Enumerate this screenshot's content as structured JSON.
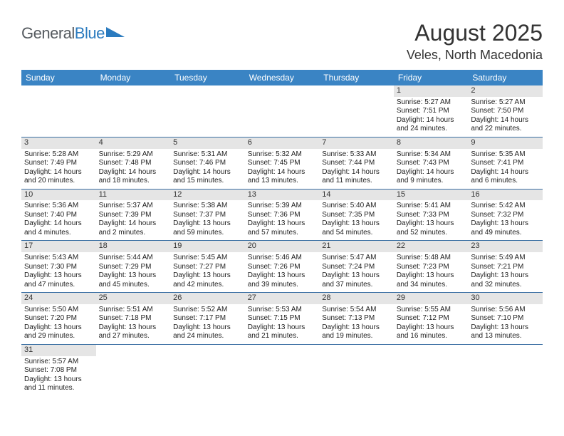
{
  "logo": {
    "part1": "General",
    "part2": "Blue"
  },
  "title": "August 2025",
  "location": "Veles, North Macedonia",
  "weekdays": [
    "Sunday",
    "Monday",
    "Tuesday",
    "Wednesday",
    "Thursday",
    "Friday",
    "Saturday"
  ],
  "colors": {
    "header_bg": "#3a84c4",
    "header_text": "#ffffff",
    "daynum_bg": "#e5e5e5",
    "cell_border": "#3a6fa3",
    "logo_gray": "#555a5f",
    "logo_blue": "#2b7bbf"
  },
  "weeks": [
    [
      null,
      null,
      null,
      null,
      null,
      {
        "n": "1",
        "rise": "Sunrise: 5:27 AM",
        "set": "Sunset: 7:51 PM",
        "dl": "Daylight: 14 hours and 24 minutes."
      },
      {
        "n": "2",
        "rise": "Sunrise: 5:27 AM",
        "set": "Sunset: 7:50 PM",
        "dl": "Daylight: 14 hours and 22 minutes."
      }
    ],
    [
      {
        "n": "3",
        "rise": "Sunrise: 5:28 AM",
        "set": "Sunset: 7:49 PM",
        "dl": "Daylight: 14 hours and 20 minutes."
      },
      {
        "n": "4",
        "rise": "Sunrise: 5:29 AM",
        "set": "Sunset: 7:48 PM",
        "dl": "Daylight: 14 hours and 18 minutes."
      },
      {
        "n": "5",
        "rise": "Sunrise: 5:31 AM",
        "set": "Sunset: 7:46 PM",
        "dl": "Daylight: 14 hours and 15 minutes."
      },
      {
        "n": "6",
        "rise": "Sunrise: 5:32 AM",
        "set": "Sunset: 7:45 PM",
        "dl": "Daylight: 14 hours and 13 minutes."
      },
      {
        "n": "7",
        "rise": "Sunrise: 5:33 AM",
        "set": "Sunset: 7:44 PM",
        "dl": "Daylight: 14 hours and 11 minutes."
      },
      {
        "n": "8",
        "rise": "Sunrise: 5:34 AM",
        "set": "Sunset: 7:43 PM",
        "dl": "Daylight: 14 hours and 9 minutes."
      },
      {
        "n": "9",
        "rise": "Sunrise: 5:35 AM",
        "set": "Sunset: 7:41 PM",
        "dl": "Daylight: 14 hours and 6 minutes."
      }
    ],
    [
      {
        "n": "10",
        "rise": "Sunrise: 5:36 AM",
        "set": "Sunset: 7:40 PM",
        "dl": "Daylight: 14 hours and 4 minutes."
      },
      {
        "n": "11",
        "rise": "Sunrise: 5:37 AM",
        "set": "Sunset: 7:39 PM",
        "dl": "Daylight: 14 hours and 2 minutes."
      },
      {
        "n": "12",
        "rise": "Sunrise: 5:38 AM",
        "set": "Sunset: 7:37 PM",
        "dl": "Daylight: 13 hours and 59 minutes."
      },
      {
        "n": "13",
        "rise": "Sunrise: 5:39 AM",
        "set": "Sunset: 7:36 PM",
        "dl": "Daylight: 13 hours and 57 minutes."
      },
      {
        "n": "14",
        "rise": "Sunrise: 5:40 AM",
        "set": "Sunset: 7:35 PM",
        "dl": "Daylight: 13 hours and 54 minutes."
      },
      {
        "n": "15",
        "rise": "Sunrise: 5:41 AM",
        "set": "Sunset: 7:33 PM",
        "dl": "Daylight: 13 hours and 52 minutes."
      },
      {
        "n": "16",
        "rise": "Sunrise: 5:42 AM",
        "set": "Sunset: 7:32 PM",
        "dl": "Daylight: 13 hours and 49 minutes."
      }
    ],
    [
      {
        "n": "17",
        "rise": "Sunrise: 5:43 AM",
        "set": "Sunset: 7:30 PM",
        "dl": "Daylight: 13 hours and 47 minutes."
      },
      {
        "n": "18",
        "rise": "Sunrise: 5:44 AM",
        "set": "Sunset: 7:29 PM",
        "dl": "Daylight: 13 hours and 45 minutes."
      },
      {
        "n": "19",
        "rise": "Sunrise: 5:45 AM",
        "set": "Sunset: 7:27 PM",
        "dl": "Daylight: 13 hours and 42 minutes."
      },
      {
        "n": "20",
        "rise": "Sunrise: 5:46 AM",
        "set": "Sunset: 7:26 PM",
        "dl": "Daylight: 13 hours and 39 minutes."
      },
      {
        "n": "21",
        "rise": "Sunrise: 5:47 AM",
        "set": "Sunset: 7:24 PM",
        "dl": "Daylight: 13 hours and 37 minutes."
      },
      {
        "n": "22",
        "rise": "Sunrise: 5:48 AM",
        "set": "Sunset: 7:23 PM",
        "dl": "Daylight: 13 hours and 34 minutes."
      },
      {
        "n": "23",
        "rise": "Sunrise: 5:49 AM",
        "set": "Sunset: 7:21 PM",
        "dl": "Daylight: 13 hours and 32 minutes."
      }
    ],
    [
      {
        "n": "24",
        "rise": "Sunrise: 5:50 AM",
        "set": "Sunset: 7:20 PM",
        "dl": "Daylight: 13 hours and 29 minutes."
      },
      {
        "n": "25",
        "rise": "Sunrise: 5:51 AM",
        "set": "Sunset: 7:18 PM",
        "dl": "Daylight: 13 hours and 27 minutes."
      },
      {
        "n": "26",
        "rise": "Sunrise: 5:52 AM",
        "set": "Sunset: 7:17 PM",
        "dl": "Daylight: 13 hours and 24 minutes."
      },
      {
        "n": "27",
        "rise": "Sunrise: 5:53 AM",
        "set": "Sunset: 7:15 PM",
        "dl": "Daylight: 13 hours and 21 minutes."
      },
      {
        "n": "28",
        "rise": "Sunrise: 5:54 AM",
        "set": "Sunset: 7:13 PM",
        "dl": "Daylight: 13 hours and 19 minutes."
      },
      {
        "n": "29",
        "rise": "Sunrise: 5:55 AM",
        "set": "Sunset: 7:12 PM",
        "dl": "Daylight: 13 hours and 16 minutes."
      },
      {
        "n": "30",
        "rise": "Sunrise: 5:56 AM",
        "set": "Sunset: 7:10 PM",
        "dl": "Daylight: 13 hours and 13 minutes."
      }
    ],
    [
      {
        "n": "31",
        "rise": "Sunrise: 5:57 AM",
        "set": "Sunset: 7:08 PM",
        "dl": "Daylight: 13 hours and 11 minutes."
      },
      null,
      null,
      null,
      null,
      null,
      null
    ]
  ]
}
